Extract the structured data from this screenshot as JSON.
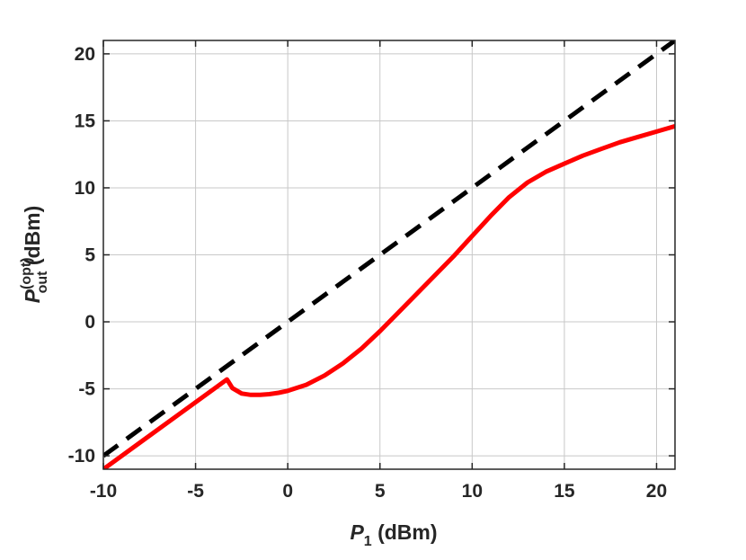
{
  "chart_data": {
    "type": "line",
    "xlabel": {
      "main": "P",
      "sub": "1",
      "unit": " (dBm)"
    },
    "ylabel": {
      "main": "P",
      "sup": "(opt)",
      "sub": "out",
      "unit": " (dBm)"
    },
    "xlim": [
      -10,
      21
    ],
    "ylim": [
      -11,
      21
    ],
    "xticks": [
      -10,
      -5,
      0,
      5,
      10,
      15,
      20
    ],
    "xtick_labels": [
      "-10",
      "-5",
      "0",
      "5",
      "10",
      "15",
      "20"
    ],
    "yticks": [
      -10,
      -5,
      0,
      5,
      10,
      15,
      20
    ],
    "ytick_labels": [
      "-10",
      "-5",
      "0",
      "5",
      "10",
      "15",
      "20"
    ],
    "grid": true,
    "series": [
      {
        "color": "#ff0000",
        "style": "solid",
        "x": [
          -10,
          -8,
          -6,
          -4,
          -3.3,
          -3.0,
          -2.5,
          -2.0,
          -1.5,
          -1.0,
          -0.5,
          0,
          1,
          2,
          3,
          4,
          5,
          6,
          7,
          8,
          9,
          10,
          11,
          12,
          13,
          14,
          15,
          16,
          17,
          18,
          19,
          20,
          21
        ],
        "y": [
          -11,
          -9.0,
          -7.0,
          -5.0,
          -4.3,
          -4.95,
          -5.35,
          -5.45,
          -5.45,
          -5.4,
          -5.3,
          -5.15,
          -4.7,
          -4.0,
          -3.1,
          -2.0,
          -0.7,
          0.7,
          2.1,
          3.5,
          4.9,
          6.4,
          7.9,
          9.3,
          10.4,
          11.2,
          11.8,
          12.4,
          12.9,
          13.4,
          13.8,
          14.2,
          14.6
        ]
      },
      {
        "color": "#000000",
        "style": "dashed",
        "x": [
          -10,
          21
        ],
        "y": [
          -10,
          21
        ]
      }
    ]
  }
}
